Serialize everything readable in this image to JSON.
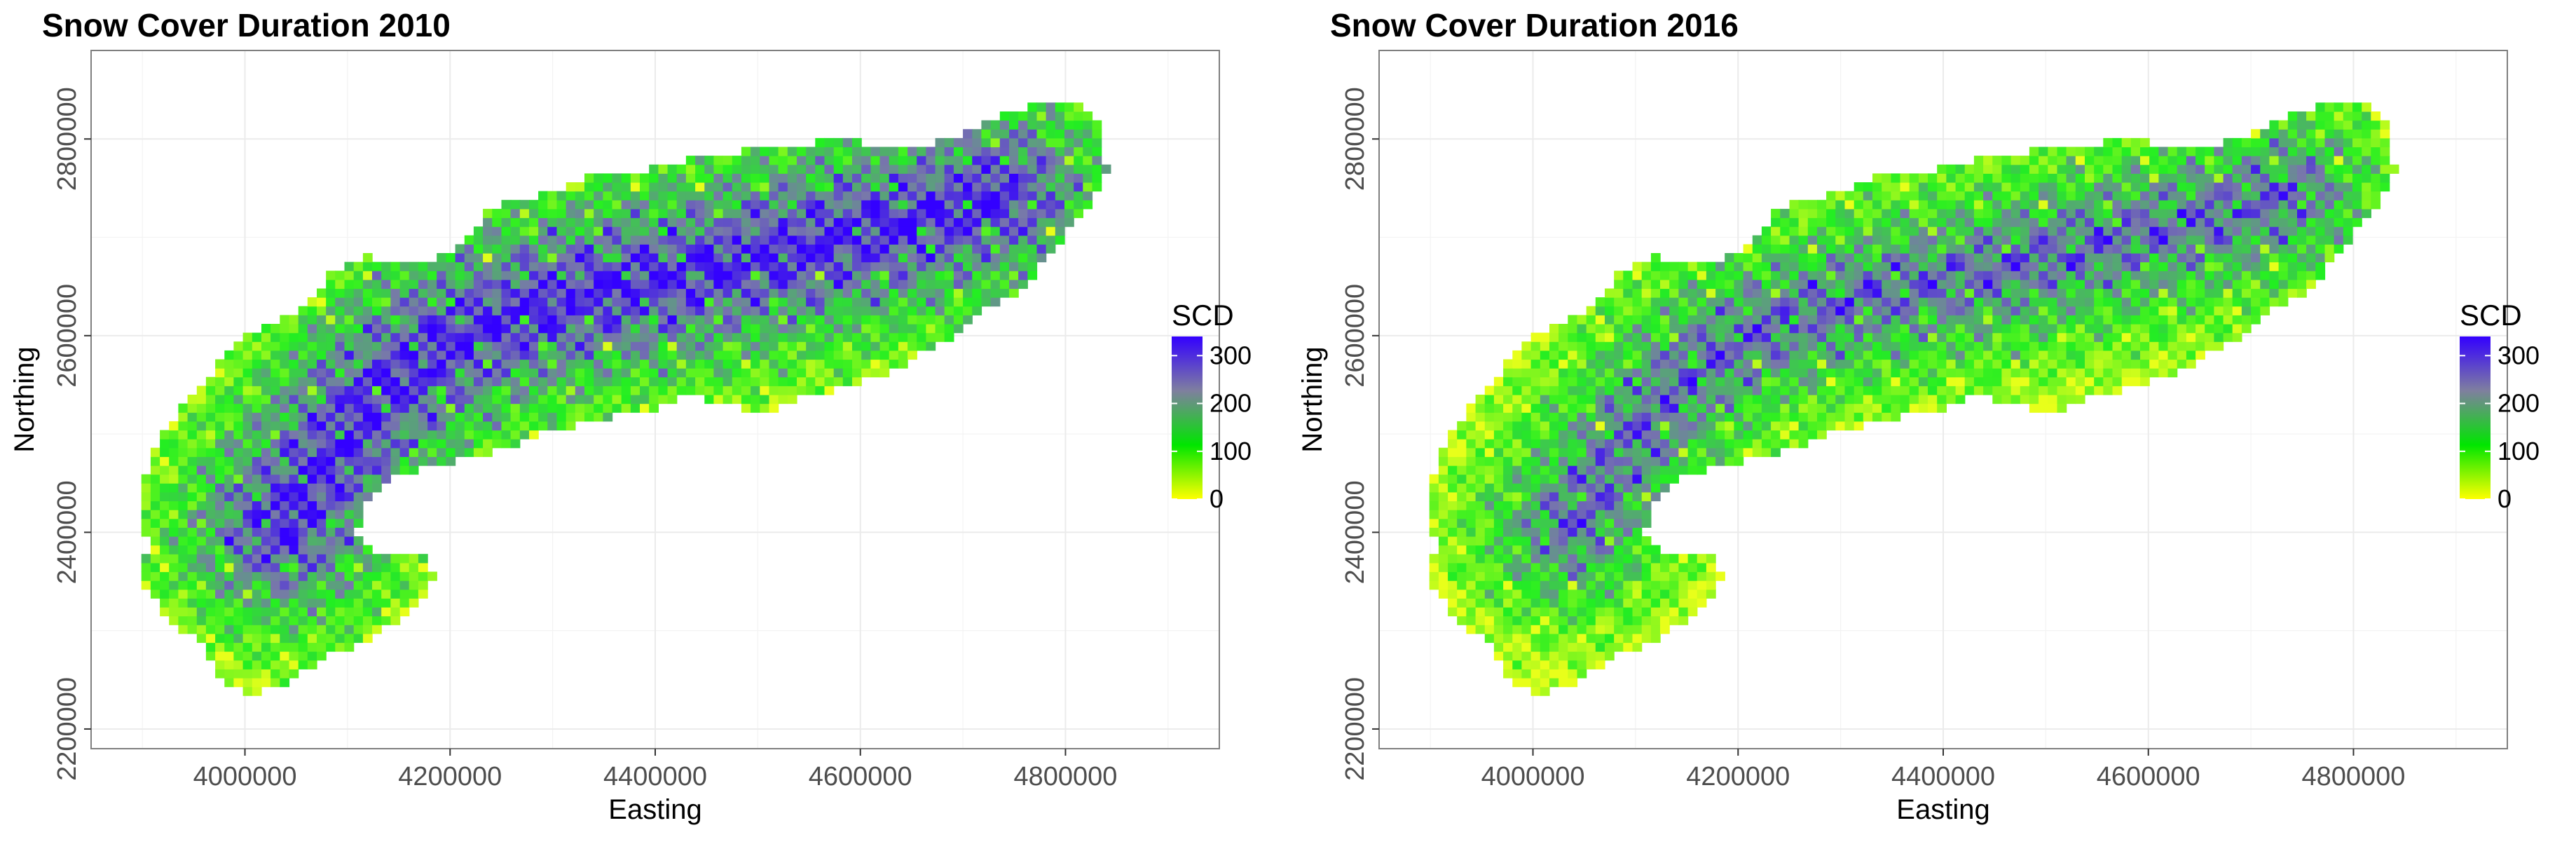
{
  "chart_data": [
    {
      "type": "heatmap",
      "title": "Snow Cover Duration 2010",
      "xlabel": "Easting",
      "ylabel": "Northing",
      "xlim": [
        3850000,
        4950000
      ],
      "ylim": [
        2180000,
        2890000
      ],
      "x_ticks": [
        4000000,
        4200000,
        4400000,
        4600000,
        4800000
      ],
      "x_tick_labels": [
        "4000000",
        "4200000",
        "4400000",
        "4600000",
        "4800000"
      ],
      "y_ticks": [
        2200000,
        2400000,
        2600000,
        2800000
      ],
      "y_tick_labels": [
        "2200000",
        "2400000",
        "2600000",
        "2800000"
      ],
      "grid": true,
      "legend": {
        "title": "SCD",
        "placement": "right",
        "labels": [
          "300",
          "200",
          "100",
          "0"
        ],
        "values": [
          300,
          200,
          100,
          0
        ],
        "range": [
          0,
          340
        ],
        "colors": [
          "#ffff00",
          "#00e600",
          "#7f7f9f",
          "#3300ff"
        ]
      },
      "colors": {
        "low": "#e8ff1a",
        "mid": "#22ee22",
        "high": "#3300ff"
      }
    },
    {
      "type": "heatmap",
      "title": "Snow Cover Duration 2016",
      "xlabel": "Easting",
      "ylabel": "Northing",
      "xlim": [
        3850000,
        4950000
      ],
      "ylim": [
        2180000,
        2890000
      ],
      "x_ticks": [
        4000000,
        4200000,
        4400000,
        4600000,
        4800000
      ],
      "x_tick_labels": [
        "4000000",
        "4200000",
        "4400000",
        "4600000",
        "4800000"
      ],
      "y_ticks": [
        2200000,
        2400000,
        2600000,
        2800000
      ],
      "y_tick_labels": [
        "2200000",
        "2400000",
        "2600000",
        "2800000"
      ],
      "grid": true,
      "legend": {
        "title": "SCD",
        "placement": "right",
        "labels": [
          "300",
          "200",
          "100",
          "0"
        ],
        "values": [
          300,
          200,
          100,
          0
        ],
        "range": [
          0,
          340
        ],
        "colors": [
          "#ffff00",
          "#00e600",
          "#7f7f9f",
          "#3300ff"
        ]
      },
      "colors": {
        "low": "#e8ff1a",
        "mid": "#22ee22",
        "high": "#3300ff"
      }
    }
  ]
}
